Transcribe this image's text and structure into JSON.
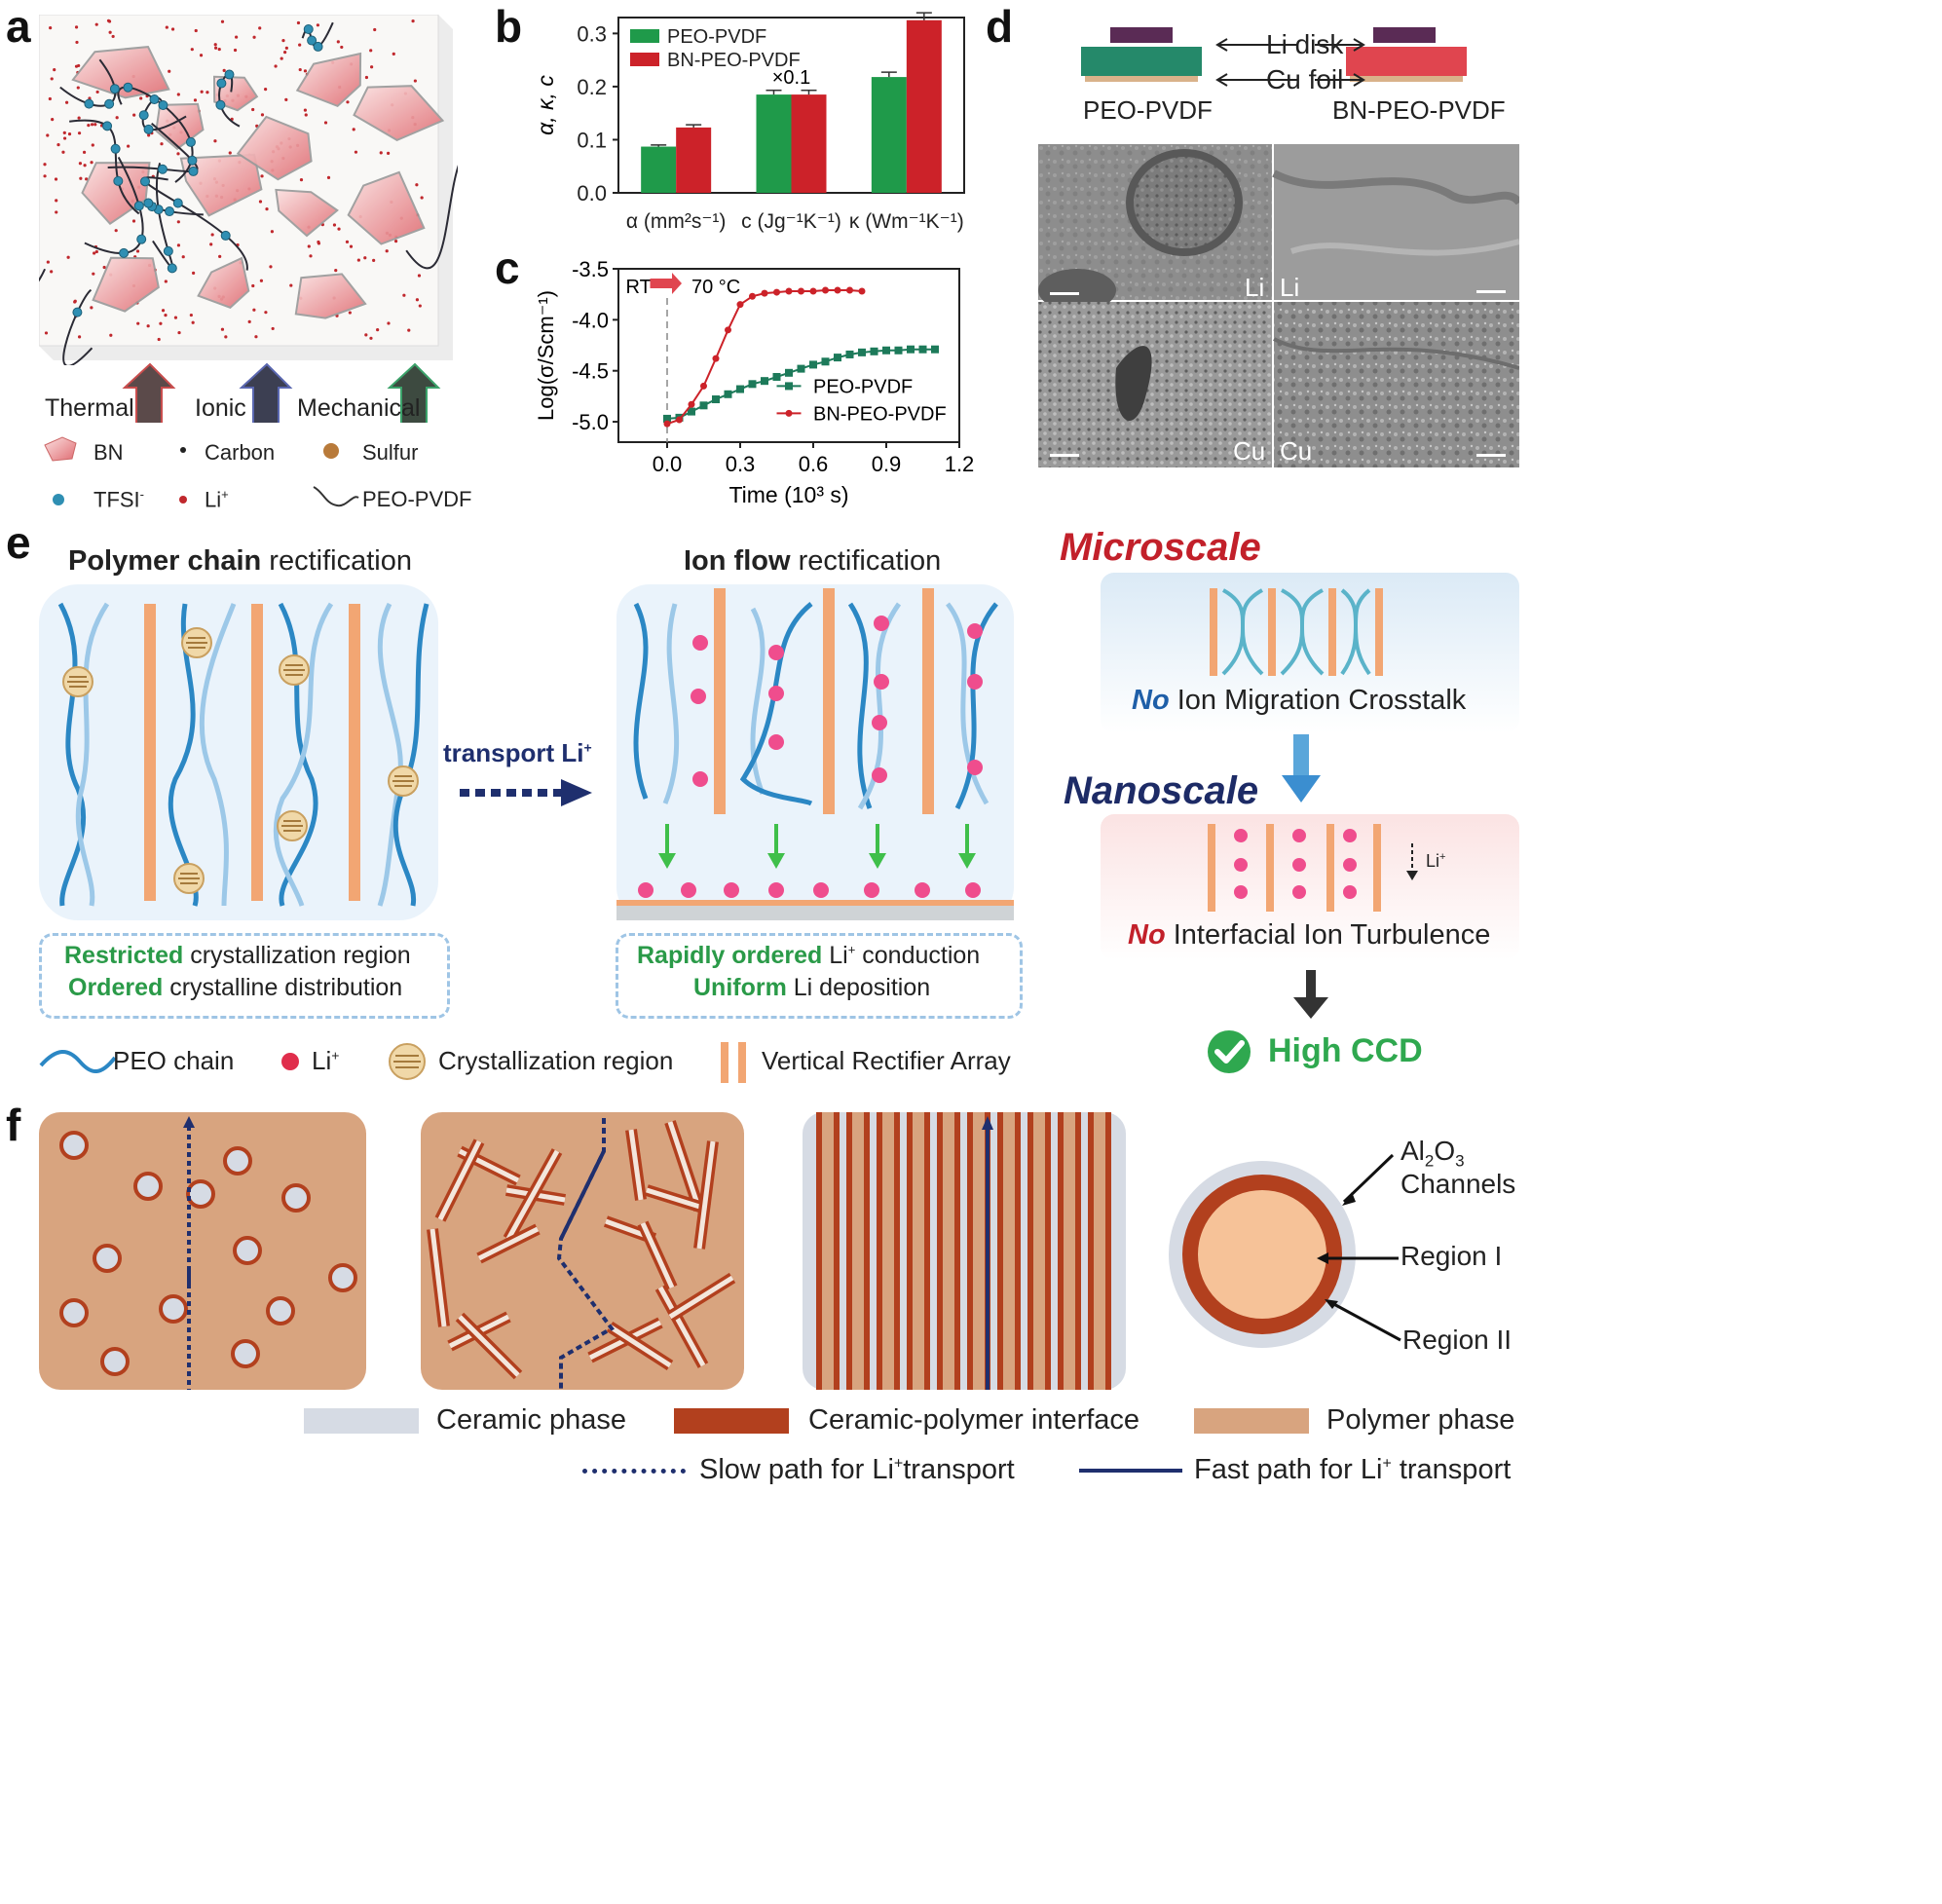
{
  "panels": {
    "a": "a",
    "b": "b",
    "c": "c",
    "d": "d",
    "e": "e",
    "f": "f"
  },
  "panel_a": {
    "arrows": [
      "Thermal",
      "Ionic",
      "Mechanical"
    ],
    "legend": {
      "bn": "BN",
      "carbon": "Carbon",
      "sulfur": "Sulfur",
      "tfsi": "TFSI",
      "tfsi_sup": "-",
      "li": "Li",
      "li_sup": "+",
      "peo_pvdf": "PEO-PVDF"
    }
  },
  "panel_d": {
    "li_disk": "Li disk",
    "cu_foil": "Cu foil",
    "left_cell": "PEO-PVDF",
    "right_cell": "BN-PEO-PVDF",
    "sem_labels": [
      "Li",
      "Li",
      "Cu",
      "Cu"
    ]
  },
  "panel_e": {
    "left_title_bold": "Polymer chain",
    "left_title_rest": " rectification",
    "mid_title_bold": "Ion flow",
    "mid_title_rest": " rectification",
    "transport": "transport Li",
    "transport_sup": "+",
    "left_box": [
      {
        "bold": "Restricted",
        "rest": " crystallization region"
      },
      {
        "bold": "Ordered",
        "rest": " crystalline distribution"
      }
    ],
    "mid_box": [
      {
        "bold": "Rapidly ordered",
        "rest": " Li",
        "sup": "+",
        "after": " conduction"
      },
      {
        "bold": "Uniform",
        "rest": " Li deposition",
        "sup": "",
        "after": ""
      }
    ],
    "microscale": "Microscale",
    "no1": "No",
    "crosstalk": " Ion Migration Crosstalk",
    "nanoscale": "Nanoscale",
    "li_small": "Li",
    "li_small_sup": "+",
    "no2": "No",
    "turbulence": " Interfacial Ion Turbulence",
    "high_ccd": "High CCD",
    "legend": {
      "peo": "PEO chain",
      "li": "Li",
      "li_sup": "+",
      "cryst": "Crystallization region",
      "rect": "Vertical Rectifier Array"
    }
  },
  "panel_f": {
    "al2o3_a": "Al",
    "al2o3_sub1": "2",
    "al2o3_b": "O",
    "al2o3_sub2": "3",
    "channels": "Channels",
    "region1": "Region I",
    "region2": "Region II",
    "legend": {
      "ceramic": "Ceramic phase",
      "interface": "Ceramic-polymer interface",
      "polymer": "Polymer phase",
      "slow": "Slow path for Li",
      "slow_sup": "+",
      "slow_rest": "transport",
      "fast": "Fast path for Li",
      "fast_sup": "+",
      "fast_rest": " transport"
    }
  },
  "chart_data": [
    {
      "type": "bar",
      "panel": "b",
      "categories": [
        "α (mm²s⁻¹)",
        "c (Jg⁻¹K⁻¹)",
        "κ (Wm⁻¹K⁻¹)"
      ],
      "series": [
        {
          "name": "PEO-PVDF",
          "color": "#1f9a4a",
          "values": [
            0.087,
            0.185,
            0.218
          ],
          "errors": [
            0.003,
            0.008,
            0.009
          ]
        },
        {
          "name": "BN-PEO-PVDF",
          "color": "#cc2229",
          "values": [
            0.123,
            0.185,
            0.325
          ],
          "errors": [
            0.005,
            0.008,
            0.014
          ]
        }
      ],
      "ylabel": "α, κ, c",
      "ylim": [
        0,
        0.33
      ],
      "yticks": [
        0.0,
        0.1,
        0.2,
        0.3
      ],
      "annotation": "×0.1"
    },
    {
      "type": "line",
      "panel": "c",
      "xlabel": "Time (10³ s)",
      "ylabel": "Log(σ/Scm⁻¹)",
      "xlim": [
        -0.2,
        1.2
      ],
      "ylim": [
        -5.2,
        -3.5
      ],
      "xticks": [
        0.0,
        0.3,
        0.6,
        0.9,
        1.2
      ],
      "yticks": [
        -5.0,
        -4.5,
        -4.0,
        -3.5
      ],
      "annotation_rt": "RT",
      "annotation_temp": "70 °C",
      "series": [
        {
          "name": "PEO-PVDF",
          "color": "#1d7a5a",
          "marker": "square",
          "x": [
            0.0,
            0.05,
            0.1,
            0.15,
            0.2,
            0.25,
            0.3,
            0.35,
            0.4,
            0.45,
            0.5,
            0.55,
            0.6,
            0.65,
            0.7,
            0.75,
            0.8,
            0.85,
            0.9,
            0.95,
            1.0,
            1.05,
            1.1
          ],
          "y": [
            -4.97,
            -4.96,
            -4.9,
            -4.84,
            -4.78,
            -4.73,
            -4.68,
            -4.63,
            -4.6,
            -4.56,
            -4.52,
            -4.48,
            -4.44,
            -4.41,
            -4.37,
            -4.34,
            -4.32,
            -4.31,
            -4.3,
            -4.3,
            -4.29,
            -4.29,
            -4.29
          ]
        },
        {
          "name": "BN-PEO-PVDF",
          "color": "#cc2229",
          "marker": "circle",
          "x": [
            0.0,
            0.05,
            0.1,
            0.15,
            0.2,
            0.25,
            0.3,
            0.35,
            0.4,
            0.45,
            0.5,
            0.55,
            0.6,
            0.65,
            0.7,
            0.75,
            0.8
          ],
          "y": [
            -5.02,
            -4.98,
            -4.83,
            -4.65,
            -4.38,
            -4.1,
            -3.85,
            -3.77,
            -3.74,
            -3.73,
            -3.72,
            -3.72,
            -3.72,
            -3.71,
            -3.71,
            -3.71,
            -3.72
          ]
        }
      ]
    }
  ]
}
